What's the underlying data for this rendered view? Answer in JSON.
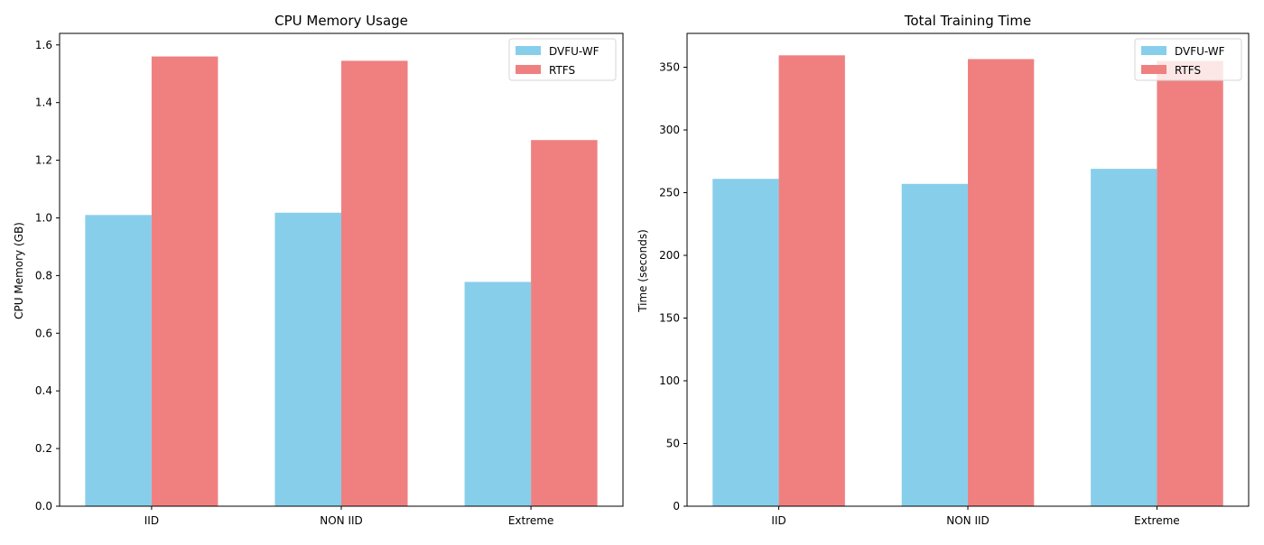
{
  "chart_data": [
    {
      "type": "bar",
      "title": "CPU Memory Usage",
      "xlabel": "",
      "ylabel": "CPU Memory (GB)",
      "categories": [
        "IID",
        "NON IID",
        "Extreme"
      ],
      "series": [
        {
          "name": "DVFU-WF",
          "values": [
            1.01,
            1.018,
            0.778
          ],
          "color": "#87ceeb"
        },
        {
          "name": "RTFS",
          "values": [
            1.56,
            1.545,
            1.27
          ],
          "color": "#f08080"
        }
      ],
      "ylim": [
        0,
        1.64
      ],
      "yticks": [
        0.0,
        0.2,
        0.4,
        0.6,
        0.8,
        1.0,
        1.2,
        1.4,
        1.6
      ],
      "ytick_labels": [
        "0.0",
        "0.2",
        "0.4",
        "0.6",
        "0.8",
        "1.0",
        "1.2",
        "1.4",
        "1.6"
      ],
      "legend": "top-right",
      "grid": false
    },
    {
      "type": "bar",
      "title": "Total Training Time",
      "xlabel": "",
      "ylabel": "Time (seconds)",
      "categories": [
        "IID",
        "NON IID",
        "Extreme"
      ],
      "series": [
        {
          "name": "DVFU-WF",
          "values": [
            261,
            257,
            269
          ],
          "color": "#87ceeb"
        },
        {
          "name": "RTFS",
          "values": [
            359.5,
            356.5,
            355
          ],
          "color": "#f08080"
        }
      ],
      "ylim": [
        0,
        377
      ],
      "yticks": [
        0,
        50,
        100,
        150,
        200,
        250,
        300,
        350
      ],
      "ytick_labels": [
        "0",
        "50",
        "100",
        "150",
        "200",
        "250",
        "300",
        "350"
      ],
      "legend": "top-right",
      "grid": false
    }
  ]
}
